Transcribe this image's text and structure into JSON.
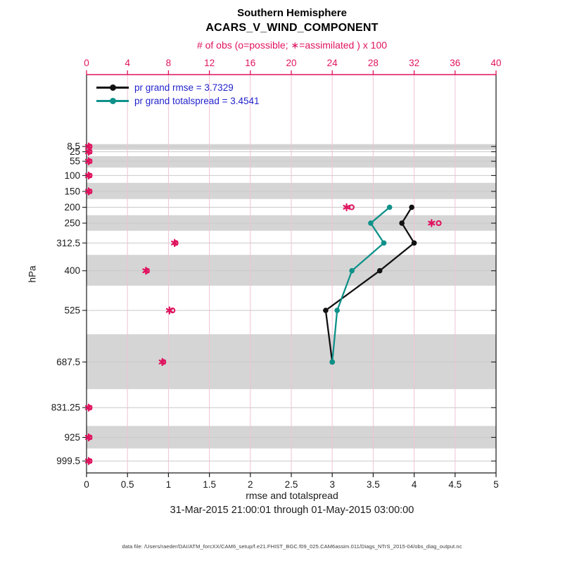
{
  "colors": {
    "accent_pink": "#e0135f",
    "grid_pink": "#f0c2d6",
    "teal": "#0f9189",
    "series_black": "#111111",
    "legend_blue": "#2323cc",
    "band_gray": "#d5d5d5",
    "level_line_gray": "#c9c9c9",
    "axis_black": "#1a1a1a"
  },
  "header": {
    "title_line1": "Southern Hemisphere",
    "title_line2": "ACARS_V_WIND_COMPONENT"
  },
  "axes_labels": {
    "top": "# of obs (o=possible; ∗=assimilated ) x 100",
    "bottom": "rmse and totalspread",
    "left": "hPa"
  },
  "legend": {
    "items": [
      {
        "label": "pr grand rmse = 3.7329",
        "color": "#111111"
      },
      {
        "label": "pr grand totalspread = 3.4541",
        "color": "#0f9189"
      }
    ]
  },
  "footer": {
    "date_range": "31-Mar-2015 21:00:01 through 01-May-2015 03:00:00",
    "data_file": "data file: /Users/raeder/DAI/ATM_forcXX/CAM6_setup/f.e21.FHIST_BGC.f09_025.CAM6assim.011/Diags_NTrS_2015-04/obs_diag_output.nc"
  },
  "chart_data": {
    "type": "line",
    "title": "Southern Hemisphere",
    "subtitle": "ACARS_V_WIND_COMPONENT",
    "orientation": "vertical-profile",
    "time_range": "31-Mar-2015 21:00:01 through 01-May-2015 03:00:00",
    "top_axis": {
      "label": "# of obs (o=possible; ∗=assimilated ) x 100",
      "range": [
        0,
        40
      ],
      "ticks": [
        0,
        4,
        8,
        12,
        16,
        20,
        24,
        28,
        32,
        36,
        40
      ]
    },
    "bottom_axis": {
      "label": "rmse and totalspread",
      "range": [
        0,
        5
      ],
      "ticks": [
        0,
        0.5,
        1,
        1.5,
        2,
        2.5,
        3,
        3.5,
        4,
        4.5,
        5
      ]
    },
    "left_axis": {
      "label": "hPa",
      "ticks": [
        8.5,
        25,
        55,
        100,
        150,
        200,
        250,
        312.5,
        400,
        525,
        687.5,
        831.25,
        925,
        999.5
      ],
      "pixel_linear_pressure_range": [
        -218,
        1037
      ]
    },
    "series": [
      {
        "name": "pr grand rmse",
        "grand_value": 3.7329,
        "color": "#111111",
        "levels_hpa": [
          200,
          250,
          312.5,
          400,
          525,
          687.5
        ],
        "values": [
          3.97,
          3.85,
          4.0,
          3.58,
          2.92,
          3.0
        ]
      },
      {
        "name": "pr grand totalspread",
        "grand_value": 3.4541,
        "color": "#0f9189",
        "levels_hpa": [
          200,
          250,
          312.5,
          400,
          525,
          687.5
        ],
        "values": [
          3.7,
          3.47,
          3.63,
          3.24,
          3.06,
          3.0
        ]
      }
    ],
    "obs_counts_x100": [
      {
        "level": 8.5,
        "possible": 0.3,
        "assimilated": 0.2
      },
      {
        "level": 25,
        "possible": 0.3,
        "assimilated": 0.2
      },
      {
        "level": 55,
        "possible": 0.3,
        "assimilated": 0.2
      },
      {
        "level": 100,
        "possible": 0.3,
        "assimilated": 0.2
      },
      {
        "level": 150,
        "possible": 0.3,
        "assimilated": 0.2
      },
      {
        "level": 200,
        "possible": 25.9,
        "assimilated": 25.4
      },
      {
        "level": 250,
        "possible": 34.4,
        "assimilated": 33.7
      },
      {
        "level": 312.5,
        "possible": 8.7,
        "assimilated": 8.6
      },
      {
        "level": 400,
        "possible": 5.9,
        "assimilated": 5.8
      },
      {
        "level": 525,
        "possible": 8.4,
        "assimilated": 8.1
      },
      {
        "level": 687.5,
        "possible": 7.5,
        "assimilated": 7.4
      },
      {
        "level": 831.25,
        "possible": 0.3,
        "assimilated": 0.2
      },
      {
        "level": 925,
        "possible": 0.3,
        "assimilated": 0.2
      },
      {
        "level": 999.5,
        "possible": 0.3,
        "assimilated": 0.2
      }
    ],
    "shaded_bands_hpa": [
      [
        1,
        19
      ],
      [
        39,
        75
      ],
      [
        123,
        174
      ],
      [
        225,
        274
      ],
      [
        350,
        447
      ],
      [
        600,
        773
      ],
      [
        889,
        960
      ]
    ]
  }
}
